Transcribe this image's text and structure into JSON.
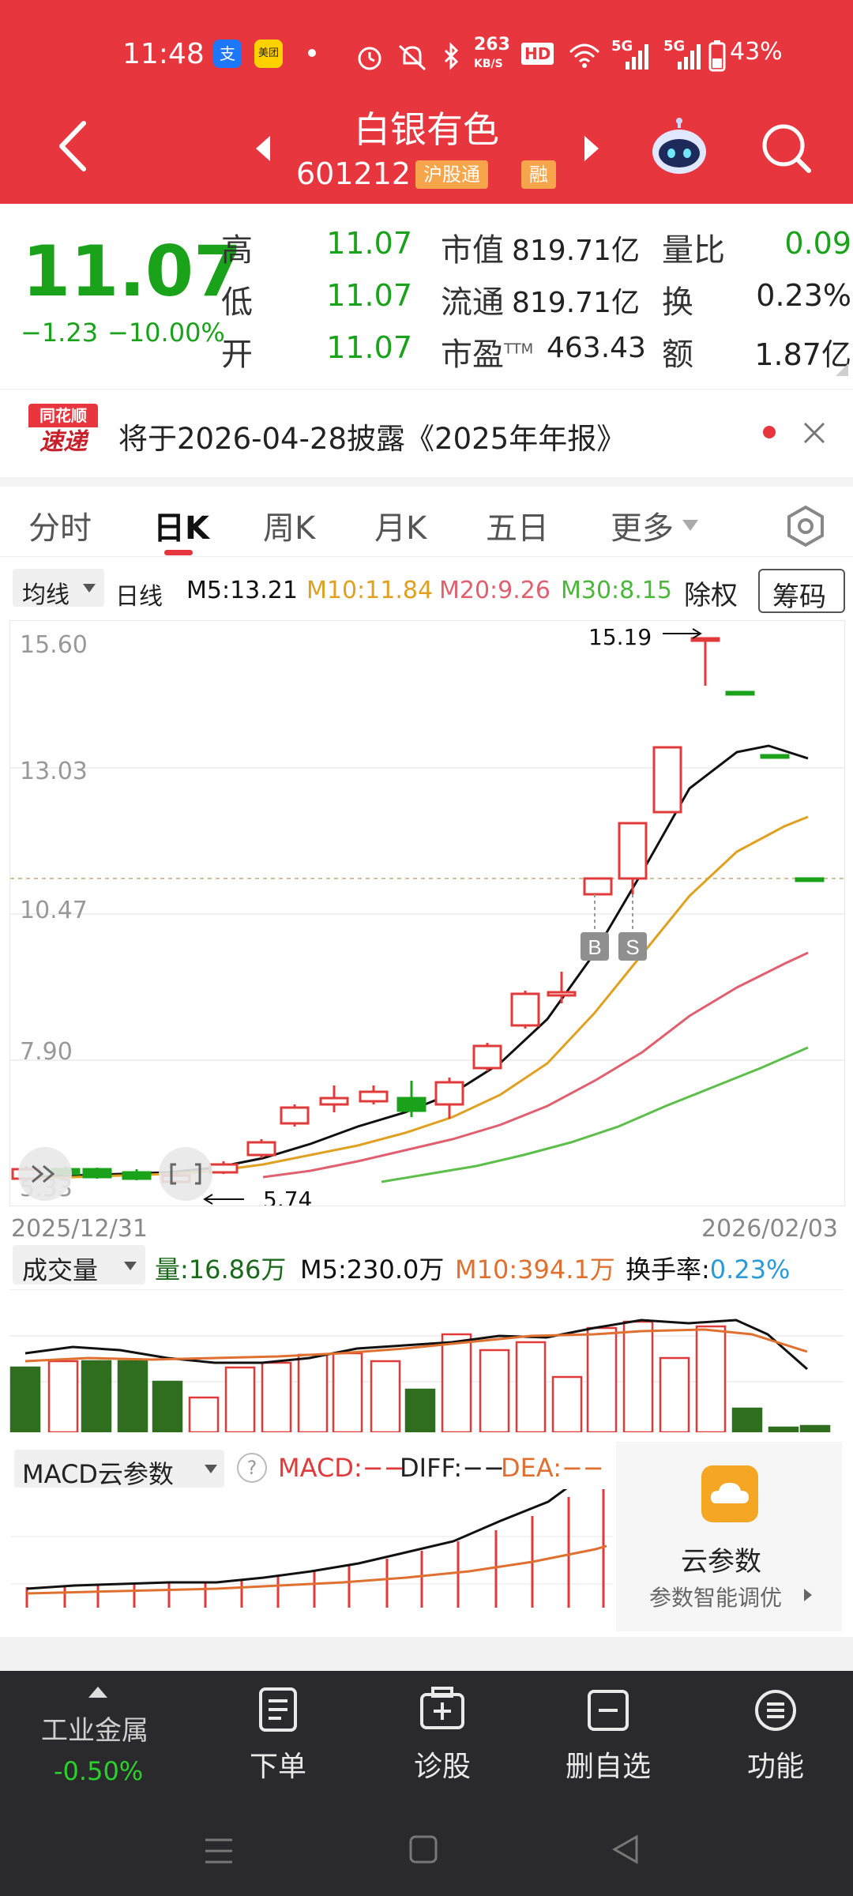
{
  "status": {
    "time": "11:48",
    "app1": "支",
    "app2": "美团",
    "speed_top": "263",
    "speed_bottom": "KB/S",
    "hd": "HD",
    "sig1": "5G",
    "sig2": "5G",
    "battery": "43%"
  },
  "header": {
    "title": "白银有色",
    "code": "601212",
    "tag1": "沪股通",
    "tag2": "融"
  },
  "quote": {
    "price": "11.07",
    "change": "−1.23",
    "change_pct": "−10.00%",
    "labels": [
      "高",
      "低",
      "开"
    ],
    "values": [
      "11.07",
      "11.07",
      "11.07"
    ],
    "mid_labels": [
      "市值",
      "流通",
      "市盈"
    ],
    "mid_sup": "TTM",
    "mid_values": [
      "819.71亿",
      "819.71亿",
      "463.43"
    ],
    "right_labels": [
      "量比",
      "换",
      "额"
    ],
    "right_values": [
      "0.09",
      "0.23%",
      "1.87亿"
    ]
  },
  "notice": {
    "logo_top": "同花顺",
    "logo_bottom": "速递",
    "text": "将于2026-04-28披露《2025年年报》"
  },
  "tabs": [
    "分时",
    "日K",
    "周K",
    "月K",
    "五日",
    "更多"
  ],
  "legend": {
    "ma_select": "均线",
    "period": "日线",
    "m5": "M5:13.21",
    "m10": "M10:11.84",
    "m20": "M20:9.26",
    "m30": "M30:8.15",
    "fq": "除权",
    "chip_button": "筹码"
  },
  "kchart": {
    "y_ticks": [
      "15.60",
      "13.03",
      "10.47",
      "7.90",
      "5.33"
    ],
    "high_label": "15.19",
    "low_label": "5.74",
    "start_date": "2025/12/31",
    "end_date": "2026/02/03",
    "mark_b": "B",
    "mark_s": "S"
  },
  "volume": {
    "select": "成交量",
    "vol": "量:16.86万",
    "m5": "M5:230.0万",
    "m10": "M10:394.1万",
    "turnover_label": "换手率:",
    "turnover": "0.23%"
  },
  "macd": {
    "select": "MACD云参数",
    "help": "?",
    "macd": "MACD:−−",
    "diff": "DIFF:−−",
    "dea": "DEA:−−",
    "cloud_title": "云参数",
    "cloud_sub": "参数智能调优"
  },
  "bottom": {
    "sector": "工业金属",
    "sector_chg": "-0.50%",
    "items": [
      "下单",
      "诊股",
      "删自选",
      "功能"
    ]
  },
  "colors": {
    "brand": "#e8363f",
    "down": "#1aa31a",
    "up": "#e03a3a",
    "m10": "#e0a020",
    "m20": "#e06070",
    "m30": "#5cbf4a"
  }
}
